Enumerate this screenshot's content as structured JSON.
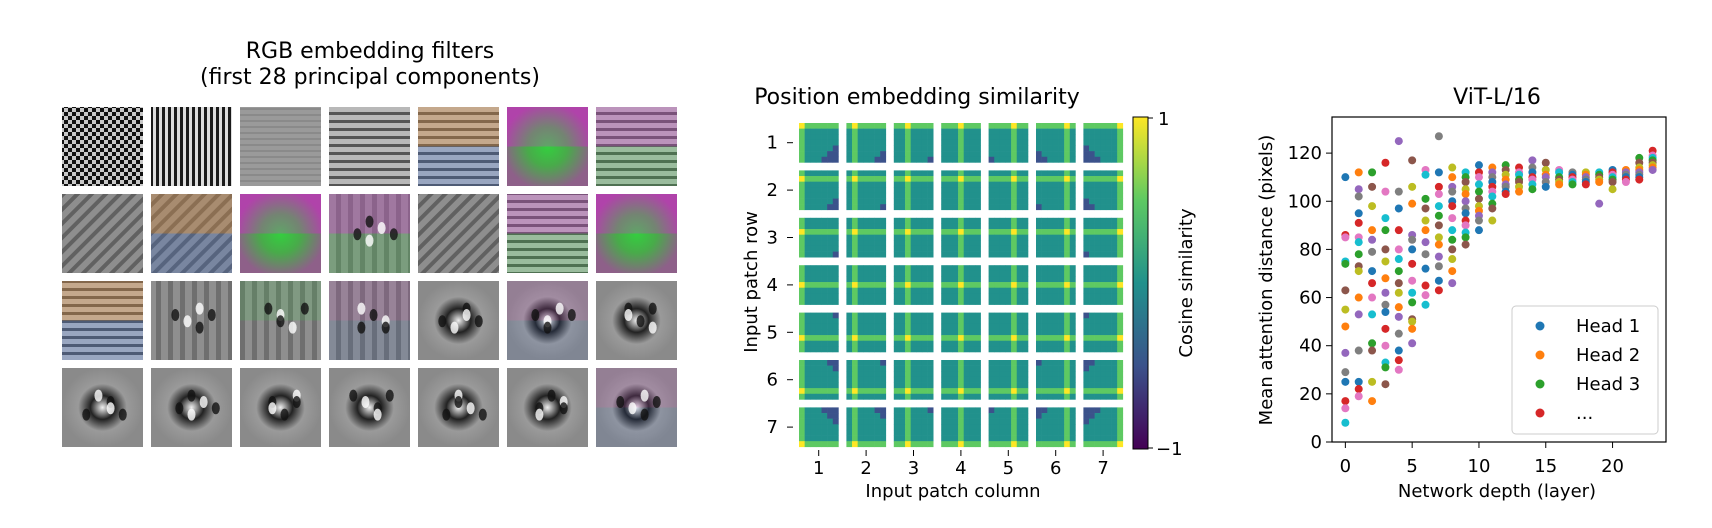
{
  "chart_data": [
    {
      "type": "image-grid",
      "title_line1": "RGB embedding filters",
      "title_line2": "(first 28 principal components)",
      "rows": 4,
      "cols": 7,
      "filters": [
        {
          "pattern": "checker",
          "hue": "gray"
        },
        {
          "pattern": "vstripes-fine",
          "hue": "gray"
        },
        {
          "pattern": "faint-hstripes",
          "hue": "gray"
        },
        {
          "pattern": "hstripes",
          "hue": "gray"
        },
        {
          "pattern": "hstripes",
          "hue": "orange-blue"
        },
        {
          "pattern": "blob",
          "hue": "magenta-green"
        },
        {
          "pattern": "hstripes",
          "hue": "magenta-green"
        },
        {
          "pattern": "diagonal",
          "hue": "gray"
        },
        {
          "pattern": "diagonal",
          "hue": "orange-blue"
        },
        {
          "pattern": "blob",
          "hue": "magenta-green"
        },
        {
          "pattern": "vbars",
          "hue": "magenta-green"
        },
        {
          "pattern": "diagonal",
          "hue": "gray"
        },
        {
          "pattern": "hstripes",
          "hue": "magenta-green"
        },
        {
          "pattern": "blob",
          "hue": "magenta-green"
        },
        {
          "pattern": "hstripes",
          "hue": "orange-blue"
        },
        {
          "pattern": "vbars",
          "hue": "gray"
        },
        {
          "pattern": "vbars",
          "hue": "green"
        },
        {
          "pattern": "vbars",
          "hue": "multi"
        },
        {
          "pattern": "spots",
          "hue": "gray"
        },
        {
          "pattern": "spots",
          "hue": "multi"
        },
        {
          "pattern": "spots",
          "hue": "gray"
        },
        {
          "pattern": "spots",
          "hue": "gray"
        },
        {
          "pattern": "spots",
          "hue": "gray"
        },
        {
          "pattern": "spots",
          "hue": "gray"
        },
        {
          "pattern": "spots",
          "hue": "gray"
        },
        {
          "pattern": "spots",
          "hue": "gray"
        },
        {
          "pattern": "spots",
          "hue": "gray"
        },
        {
          "pattern": "spots",
          "hue": "multi"
        }
      ]
    },
    {
      "type": "heatmap",
      "title": "Position embedding similarity",
      "xlabel": "Input patch column",
      "ylabel": "Input patch row",
      "x_ticks": [
        "1",
        "2",
        "3",
        "4",
        "5",
        "6",
        "7"
      ],
      "y_ticks": [
        "1",
        "2",
        "3",
        "4",
        "5",
        "6",
        "7"
      ],
      "grid_size": 7,
      "colorbar_label": "Cosine similarity",
      "colorbar_max_label": "1",
      "colorbar_min_label": "−1",
      "colorbar_range": [
        -1,
        1
      ]
    },
    {
      "type": "scatter",
      "title": "ViT-L/16",
      "xlabel": "Network depth (layer)",
      "ylabel": "Mean attention distance (pixels)",
      "xlim": [
        -1,
        24
      ],
      "ylim": [
        0,
        135
      ],
      "x_ticks": [
        0,
        5,
        10,
        15,
        20
      ],
      "y_ticks": [
        0,
        20,
        40,
        60,
        80,
        100,
        120
      ],
      "legend": {
        "placement": "lower-right",
        "entries": [
          {
            "label": "Head 1",
            "color": "#1f77b4"
          },
          {
            "label": "Head 2",
            "color": "#ff7f0e"
          },
          {
            "label": "Head 3",
            "color": "#2ca02c"
          },
          {
            "label": "...",
            "color": "#d62728"
          }
        ]
      },
      "palette": [
        "#1f77b4",
        "#ff7f0e",
        "#2ca02c",
        "#d62728",
        "#9467bd",
        "#8c564b",
        "#e377c2",
        "#7f7f7f",
        "#bcbd22",
        "#17becf"
      ],
      "series_points": [
        {
          "layer": 0,
          "values": [
            110,
            86,
            85,
            75,
            74,
            63,
            55,
            48,
            37,
            29,
            25,
            17,
            14,
            8
          ]
        },
        {
          "layer": 1,
          "values": [
            112,
            105,
            102,
            95,
            91,
            85,
            83,
            78,
            73,
            71,
            60,
            53,
            38,
            25,
            22,
            19
          ]
        },
        {
          "layer": 2,
          "values": [
            112,
            106,
            98,
            88,
            84,
            79,
            71,
            66,
            60,
            53,
            41,
            38,
            25,
            17
          ]
        },
        {
          "layer": 3,
          "values": [
            116,
            104,
            93,
            88,
            80,
            75,
            68,
            62,
            57,
            54,
            47,
            40,
            33,
            31,
            24
          ]
        },
        {
          "layer": 4,
          "values": [
            125,
            104,
            97,
            88,
            80,
            76,
            71,
            66,
            62,
            56,
            52,
            45,
            38,
            34,
            30
          ]
        },
        {
          "layer": 5,
          "values": [
            117,
            106,
            99,
            86,
            84,
            80,
            74,
            67,
            62,
            58,
            51,
            50,
            47,
            41
          ]
        },
        {
          "layer": 6,
          "values": [
            113,
            111,
            101,
            97,
            92,
            88,
            83,
            78,
            72,
            65,
            61,
            57
          ]
        },
        {
          "layer": 7,
          "values": [
            127,
            112,
            106,
            103,
            98,
            94,
            90,
            85,
            82,
            77,
            73,
            67,
            63
          ]
        },
        {
          "layer": 8,
          "values": [
            114,
            110,
            106,
            104,
            100,
            98,
            93,
            88,
            84,
            80,
            76,
            71,
            66
          ]
        },
        {
          "layer": 9,
          "values": [
            112,
            110,
            108,
            105,
            103,
            100,
            97,
            95,
            92,
            90,
            87,
            85,
            82
          ]
        },
        {
          "layer": 10,
          "values": [
            115,
            112,
            110,
            107,
            104,
            101,
            98,
            96,
            94,
            92,
            88
          ]
        },
        {
          "layer": 11,
          "values": [
            114,
            112,
            110,
            108,
            106,
            104,
            102,
            99,
            97,
            92
          ]
        },
        {
          "layer": 12,
          "values": [
            115,
            113,
            111,
            109,
            107,
            106,
            104,
            103
          ]
        },
        {
          "layer": 13,
          "values": [
            114,
            112,
            111,
            109,
            108,
            106,
            104
          ]
        },
        {
          "layer": 14,
          "values": [
            117,
            114,
            112,
            110,
            109,
            107,
            105
          ]
        },
        {
          "layer": 15,
          "values": [
            116,
            113,
            111,
            110,
            108,
            106
          ]
        },
        {
          "layer": 16,
          "values": [
            113,
            112,
            110,
            109,
            108,
            107
          ]
        },
        {
          "layer": 17,
          "values": [
            112,
            111,
            110,
            109,
            108,
            107
          ]
        },
        {
          "layer": 18,
          "values": [
            112,
            111,
            110,
            109,
            108,
            107
          ]
        },
        {
          "layer": 19,
          "values": [
            112,
            111,
            110,
            109,
            108,
            99
          ]
        },
        {
          "layer": 20,
          "values": [
            113,
            112,
            111,
            110,
            109,
            108,
            105
          ]
        },
        {
          "layer": 21,
          "values": [
            113,
            112,
            111,
            110,
            109,
            108
          ]
        },
        {
          "layer": 22,
          "values": [
            118,
            116,
            114,
            113,
            112,
            111,
            110,
            109
          ]
        },
        {
          "layer": 23,
          "values": [
            121,
            119,
            118,
            117,
            116,
            115,
            114,
            113
          ]
        }
      ]
    }
  ]
}
